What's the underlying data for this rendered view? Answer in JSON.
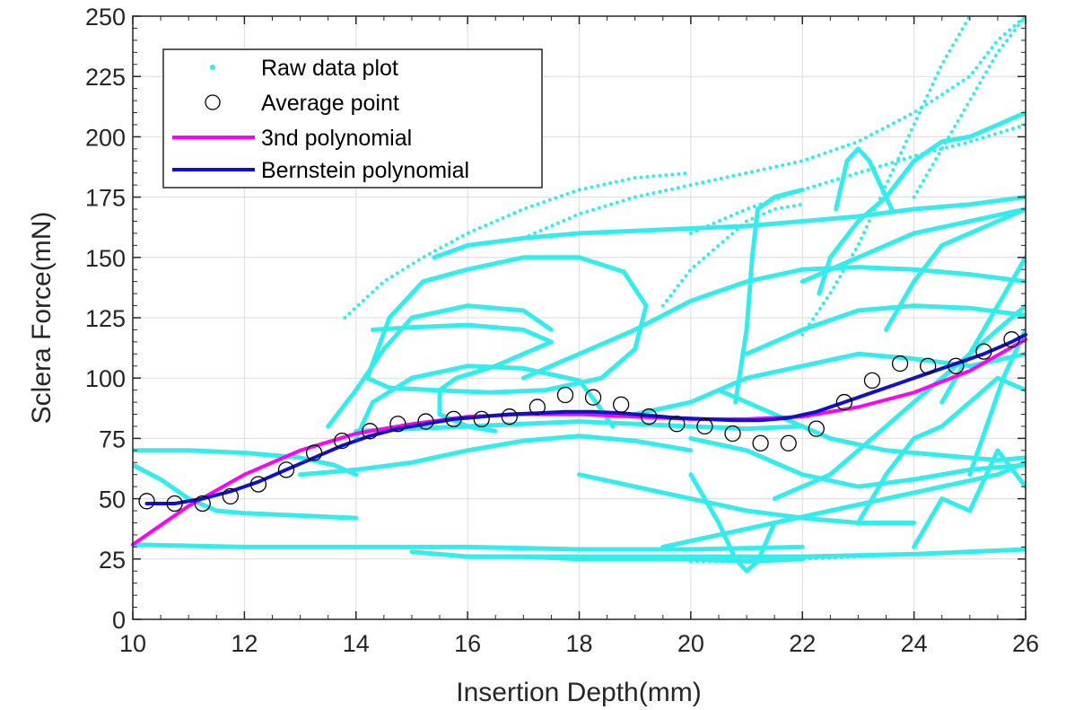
{
  "chart_data": {
    "type": "scatter",
    "title": "",
    "xlabel": "Insertion Depth(mm)",
    "ylabel": "Sclera Force(mN)",
    "xlim": [
      10,
      26
    ],
    "ylim": [
      0,
      250
    ],
    "xticks": [
      10,
      12,
      14,
      16,
      18,
      20,
      22,
      24,
      26
    ],
    "yticks": [
      0,
      25,
      50,
      75,
      100,
      125,
      150,
      175,
      200,
      225,
      250
    ],
    "grid": true,
    "legend_position": "top-left",
    "legend": [
      "Raw data plot",
      "Average point",
      "3nd polynomial",
      "Bernstein polynomial"
    ],
    "colors": {
      "raw": "#33ecec",
      "average": "#000000",
      "poly3": "#ff00ff",
      "bernstein": "#1010cc"
    },
    "series": [
      {
        "name": "Raw data plot",
        "kind": "raw",
        "traces": [
          {
            "x": [
              10.0,
              11.0,
              12.0,
              13.0,
              13.6,
              14.0
            ],
            "y": [
              70,
              70,
              69,
              67,
              64,
              60
            ],
            "dotted": false
          },
          {
            "x": [
              10.0,
              10.5,
              11.0,
              11.5,
              12.0,
              13.0,
              14.0
            ],
            "y": [
              64,
              58,
              50,
              45,
              44,
              43,
              42
            ],
            "dotted": false
          },
          {
            "x": [
              10.0,
              12.0,
              14.0,
              16.0,
              18.0,
              20.0,
              22.0
            ],
            "y": [
              31,
              30,
              30,
              30,
              29,
              29,
              30
            ],
            "dotted": false
          },
          {
            "x": [
              14.0,
              15.0,
              16.0,
              17.0,
              18.0,
              19.0,
              20.0,
              21.0,
              22.0
            ],
            "y": [
              78,
              79,
              80,
              81,
              82,
              81,
              80,
              79,
              80
            ],
            "dotted": false
          },
          {
            "x": [
              13.0,
              14.0,
              15.0,
              16.0,
              17.0,
              18.0,
              19.0,
              20.0
            ],
            "y": [
              60,
              62,
              65,
              70,
              74,
              76,
              74,
              70
            ],
            "dotted": false
          },
          {
            "x": [
              15.0,
              16.0,
              17.0,
              18.0,
              19.0,
              20.0,
              21.0,
              22.0
            ],
            "y": [
              28,
              26,
              26,
              25,
              25,
              25,
              24,
              25
            ],
            "dotted": false
          },
          {
            "x": [
              16.0,
              18.0,
              20.0,
              22.0,
              24.0,
              26.0
            ],
            "y": [
              26,
              26,
              26,
              26,
              27,
              29
            ],
            "dotted": false
          },
          {
            "x": [
              15.4,
              16.0,
              17.0,
              18.0,
              19.0,
              20.0,
              21.0,
              22.0,
              23.0,
              24.0,
              25.0,
              26.0
            ],
            "y": [
              150,
              155,
              158,
              160,
              161,
              162,
              163,
              165,
              167,
              170,
              172,
              175
            ],
            "dotted": false
          },
          {
            "x": [
              14.3,
              15.0,
              16.0,
              17.0,
              17.5,
              17.0,
              16.5,
              15.8,
              15.5,
              15.5,
              16.0,
              16.5
            ],
            "y": [
              120,
              121,
              122,
              120,
              115,
              110,
              105,
              100,
              95,
              85,
              80,
              78
            ],
            "dotted": false
          },
          {
            "x": [
              14.2,
              14.6,
              15.2,
              16.0,
              17.0,
              18.0,
              18.8,
              19.2,
              19.0,
              18.4,
              17.4,
              16.4,
              15.4,
              14.6,
              14.2
            ],
            "y": [
              100,
              125,
              140,
              145,
              150,
              150,
              144,
              130,
              112,
              100,
              95,
              94,
              95,
              96,
              100
            ],
            "dotted": false
          },
          {
            "x": [
              14.0,
              14.3,
              15.0,
              16.0,
              17.0,
              18.0,
              18.3,
              18.6
            ],
            "y": [
              75,
              90,
              100,
              105,
              104,
              99,
              90,
              80
            ],
            "dotted": false
          },
          {
            "x": [
              13.5,
              14.0,
              14.5,
              15.0,
              16.0,
              17.0,
              17.5
            ],
            "y": [
              80,
              95,
              112,
              125,
              130,
              128,
              120
            ],
            "dotted": false
          },
          {
            "x": [
              17.0,
              18.0,
              19.0,
              20.0,
              21.0,
              22.0,
              23.0,
              24.0,
              25.0,
              26.0
            ],
            "y": [
              100,
              110,
              120,
              132,
              140,
              145,
              146,
              145,
              143,
              140
            ],
            "dotted": false
          },
          {
            "x": [
              19.0,
              20.0,
              21.0,
              22.0,
              23.0,
              24.0,
              25.0,
              26.0
            ],
            "y": [
              85,
              90,
              100,
              105,
              110,
              108,
              105,
              110
            ],
            "dotted": false
          },
          {
            "x": [
              18.0,
              19.0,
              20.0,
              21.0,
              22.0,
              23.0,
              24.0
            ],
            "y": [
              60,
              55,
              50,
              45,
              42,
              40,
              40
            ],
            "dotted": false
          },
          {
            "x": [
              20.0,
              20.5,
              20.8,
              21.0,
              21.2,
              21.5
            ],
            "y": [
              60,
              40,
              25,
              20,
              24,
              40
            ],
            "dotted": false
          },
          {
            "x": [
              19.5,
              20.5,
              21.5,
              22.5,
              23.5,
              24.5,
              25.5,
              26.0
            ],
            "y": [
              30,
              35,
              40,
              45,
              50,
              55,
              60,
              65
            ],
            "dotted": false
          },
          {
            "x": [
              20.0,
              21.0,
              22.0,
              23.0,
              24.0,
              25.0,
              26.0
            ],
            "y": [
              75,
              70,
              60,
              55,
              58,
              62,
              64
            ],
            "dotted": false
          },
          {
            "x": [
              20.5,
              21.5,
              22.5,
              23.5,
              24.5,
              25.5,
              26.0
            ],
            "y": [
              95,
              85,
              75,
              70,
              68,
              66,
              67
            ],
            "dotted": false
          },
          {
            "x": [
              21.0,
              22.0,
              23.0,
              24.0,
              25.0,
              26.0
            ],
            "y": [
              110,
              120,
              128,
              130,
              129,
              126
            ],
            "dotted": false
          },
          {
            "x": [
              21.5,
              22.5,
              23.5,
              24.5,
              25.5,
              26.0
            ],
            "y": [
              50,
              60,
              80,
              100,
              120,
              130
            ],
            "dotted": false
          },
          {
            "x": [
              22.0,
              23.0,
              24.0,
              25.0,
              26.0
            ],
            "y": [
              140,
              150,
              160,
              165,
              170
            ],
            "dotted": false
          },
          {
            "x": [
              22.3,
              22.5,
              23.0,
              23.5,
              24.0,
              24.5,
              25.0,
              25.5,
              26.0
            ],
            "y": [
              135,
              150,
              165,
              175,
              190,
              198,
              200,
              205,
              210
            ],
            "dotted": false
          },
          {
            "x": [
              23.0,
              23.5,
              24.0,
              24.5,
              25.0,
              25.5,
              26.0
            ],
            "y": [
              40,
              60,
              75,
              80,
              90,
              100,
              95
            ],
            "dotted": false
          },
          {
            "x": [
              23.5,
              24.0,
              24.5,
              25.0,
              25.5,
              26.0
            ],
            "y": [
              120,
              140,
              155,
              160,
              165,
              170
            ],
            "dotted": false
          },
          {
            "x": [
              24.0,
              24.5,
              25.0,
              25.5,
              26.0
            ],
            "y": [
              30,
              50,
              45,
              70,
              55
            ],
            "dotted": false
          },
          {
            "x": [
              24.5,
              25.0,
              25.5,
              26.0
            ],
            "y": [
              90,
              110,
              130,
              150
            ],
            "dotted": false
          },
          {
            "x": [
              25.0,
              25.3,
              25.6,
              26.0
            ],
            "y": [
              60,
              80,
              100,
              120
            ],
            "dotted": false
          },
          {
            "x": [
              20.8,
              21.0,
              21.1,
              21.2,
              21.5,
              22.0
            ],
            "y": [
              90,
              120,
              150,
              170,
              175,
              178
            ],
            "dotted": false
          },
          {
            "x": [
              22.6,
              22.8,
              23.0,
              23.2,
              23.4,
              23.6
            ],
            "y": [
              170,
              190,
              195,
              190,
              180,
              170
            ],
            "dotted": false
          },
          {
            "x": [
              13.8,
              14.5,
              15.2,
              16.0,
              17.0,
              18.0,
              19.0,
              20.0
            ],
            "y": [
              125,
              140,
              150,
              160,
              170,
              178,
              183,
              185
            ],
            "dotted": true
          },
          {
            "x": [
              17.0,
              18.0,
              19.0,
              20.0,
              21.0,
              22.0,
              23.0,
              24.0,
              25.0,
              25.5,
              26.0
            ],
            "y": [
              158,
              168,
              175,
              180,
              185,
              190,
              198,
              210,
              225,
              240,
              250
            ],
            "dotted": true
          },
          {
            "x": [
              20.0,
              21.0,
              22.0,
              23.0,
              24.0,
              25.0,
              26.0
            ],
            "y": [
              160,
              170,
              178,
              185,
              192,
              198,
              205
            ],
            "dotted": true
          },
          {
            "x": [
              22.0,
              22.5,
              23.0,
              23.5,
              24.0,
              24.5,
              25.0
            ],
            "y": [
              118,
              135,
              155,
              180,
              205,
              230,
              250
            ],
            "dotted": true
          },
          {
            "x": [
              24.0,
              24.5,
              25.0,
              25.5,
              26.0
            ],
            "y": [
              175,
              195,
              215,
              235,
              250
            ],
            "dotted": true
          },
          {
            "x": [
              19.5,
              20.0,
              20.5,
              21.0,
              21.5,
              22.0
            ],
            "y": [
              130,
              145,
              155,
              165,
              170,
              172
            ],
            "dotted": true
          },
          {
            "x": [
              20.0,
              21.0,
              22.0,
              23.0,
              24.0,
              25.0,
              26.0
            ],
            "y": [
              24,
              24,
              25,
              26,
              27,
              28,
              29
            ],
            "dotted": true
          }
        ]
      },
      {
        "name": "Average point",
        "kind": "markers",
        "x": [
          10.25,
          10.75,
          11.25,
          11.75,
          12.25,
          12.75,
          13.25,
          13.75,
          14.25,
          14.75,
          15.25,
          15.75,
          16.25,
          16.75,
          17.25,
          17.75,
          18.25,
          18.75,
          19.25,
          19.75,
          20.25,
          20.75,
          21.25,
          21.75,
          22.25,
          22.75,
          23.25,
          23.75,
          24.25,
          24.75,
          25.25,
          25.75
        ],
        "y": [
          49,
          48,
          48,
          51,
          56,
          62,
          69,
          74,
          78,
          81,
          82,
          83,
          83,
          84,
          88,
          93,
          92,
          89,
          84,
          81,
          80,
          77,
          73,
          73,
          79,
          90,
          99,
          106,
          105,
          105,
          111,
          116
        ]
      },
      {
        "name": "3nd polynomial",
        "kind": "line",
        "x": [
          10,
          11,
          12,
          13,
          14,
          15,
          16,
          17,
          18,
          19,
          20,
          21,
          22,
          23,
          24,
          25,
          26
        ],
        "y": [
          31,
          47,
          60,
          70,
          77,
          81,
          84,
          85,
          85,
          84,
          83,
          83,
          84,
          88,
          94,
          103,
          116
        ]
      },
      {
        "name": "Bernstein polynomial",
        "kind": "line",
        "x": [
          10.25,
          10.75,
          11.25,
          11.75,
          12.25,
          12.75,
          13.25,
          13.75,
          14.25,
          14.75,
          15.25,
          15.75,
          16.25,
          16.75,
          17.25,
          17.75,
          18.25,
          18.75,
          19.25,
          19.75,
          20.25,
          20.75,
          21.25,
          21.75,
          22.25,
          22.75,
          23.25,
          23.75,
          24.25,
          24.75,
          25.25,
          25.75,
          26.0
        ],
        "y": [
          48,
          48,
          50,
          53,
          57,
          62,
          67,
          72,
          76,
          79,
          81,
          83,
          84,
          85,
          85.5,
          86,
          86,
          85.5,
          84.5,
          83.5,
          83,
          82.5,
          82.5,
          83.5,
          86,
          90,
          94,
          98,
          102,
          106,
          110,
          115,
          118
        ]
      }
    ]
  }
}
